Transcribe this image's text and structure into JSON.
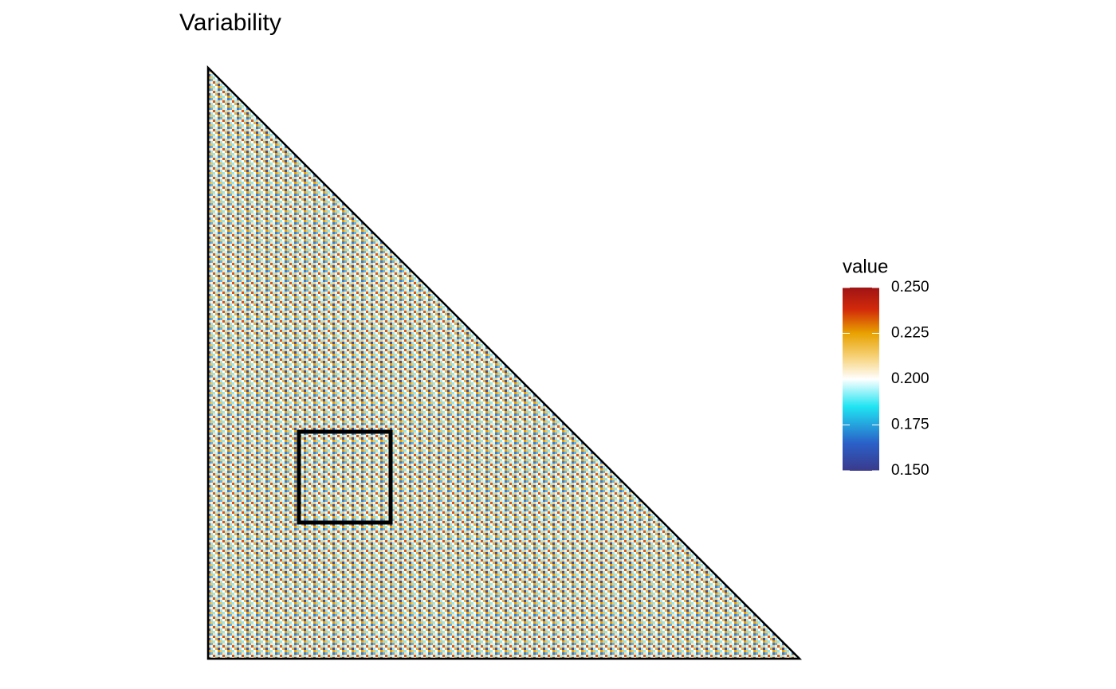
{
  "chart_data": {
    "type": "heatmap",
    "title": "Variability",
    "legend_title": "value",
    "colorbar_lim": [
      0.15,
      0.25
    ],
    "colorbar_ticks": [
      {
        "value": 0.15,
        "label": "0.150"
      },
      {
        "value": 0.175,
        "label": "0.175"
      },
      {
        "value": 0.2,
        "label": "0.200"
      },
      {
        "value": 0.225,
        "label": "0.225"
      },
      {
        "value": 0.25,
        "label": "0.250"
      }
    ],
    "colors": [
      {
        "value": 0.15,
        "color": "#3a3a8c"
      },
      {
        "value": 0.165,
        "color": "#2a60c8"
      },
      {
        "value": 0.185,
        "color": "#20e4f2"
      },
      {
        "value": 0.2,
        "color": "#ffffff"
      },
      {
        "value": 0.212,
        "color": "#f6d27a"
      },
      {
        "value": 0.225,
        "color": "#e8a200"
      },
      {
        "value": 0.238,
        "color": "#d22a0a"
      },
      {
        "value": 0.25,
        "color": "#a01414"
      }
    ]
  }
}
